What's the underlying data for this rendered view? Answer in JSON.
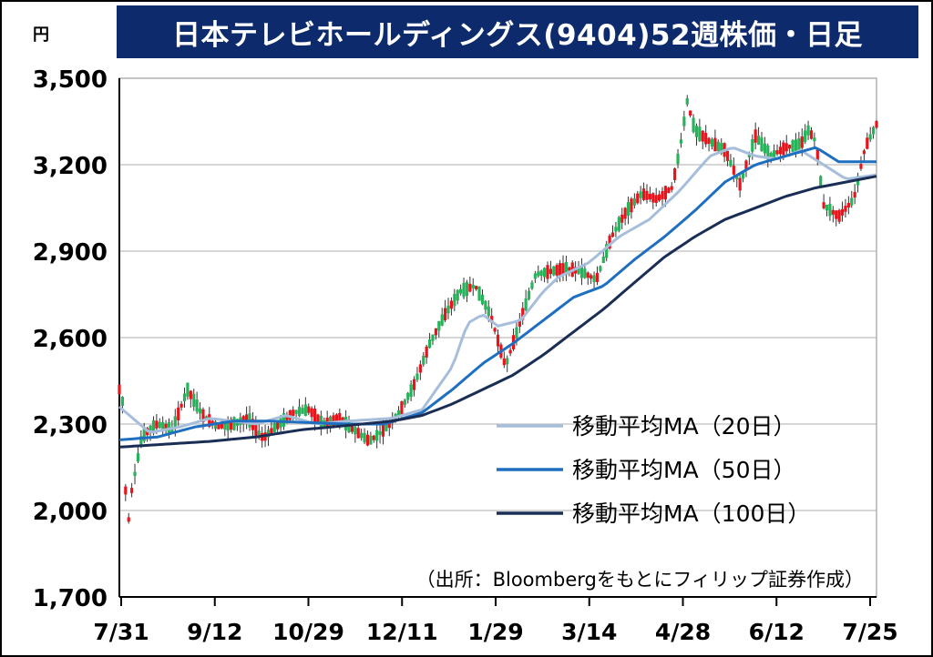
{
  "chart_data": {
    "type": "candlestick",
    "title": "日本テレビホールディングス(9404)52週株価・日足",
    "unit_label": "円",
    "source_note": "（出所：Bloombergをもとにフィリップ証券作成）",
    "y_ticks": [
      "3,500",
      "3,200",
      "2,900",
      "2,600",
      "2,300",
      "2,000",
      "1,700"
    ],
    "y_tick_values": [
      3500,
      3200,
      2900,
      2600,
      2300,
      2000,
      1700
    ],
    "x_ticks": [
      "7/31",
      "9/12",
      "10/29",
      "12/11",
      "1/29",
      "3/14",
      "4/28",
      "6/12",
      "7/25"
    ],
    "ylim": [
      1700,
      3500
    ],
    "grid": true,
    "legend_placement": "center-right",
    "colors": {
      "up": "#e8141c",
      "down": "#27b35a",
      "ma20": "#a6bedc",
      "ma50": "#1f6fc0",
      "ma100": "#1a2e55",
      "grid": "#c8c8c8",
      "title_bg": "#0d2a6c"
    },
    "series": [
      {
        "name": "移動平均MA（20日）",
        "anchors": [
          [
            0,
            2360
          ],
          [
            0.04,
            2270
          ],
          [
            0.08,
            2290
          ],
          [
            0.12,
            2320
          ],
          [
            0.18,
            2300
          ],
          [
            0.22,
            2330
          ],
          [
            0.26,
            2300
          ],
          [
            0.3,
            2310
          ],
          [
            0.36,
            2320
          ],
          [
            0.4,
            2350
          ],
          [
            0.44,
            2500
          ],
          [
            0.46,
            2650
          ],
          [
            0.48,
            2680
          ],
          [
            0.5,
            2640
          ],
          [
            0.53,
            2660
          ],
          [
            0.56,
            2760
          ],
          [
            0.58,
            2810
          ],
          [
            0.62,
            2860
          ],
          [
            0.66,
            2950
          ],
          [
            0.7,
            3010
          ],
          [
            0.74,
            3110
          ],
          [
            0.78,
            3230
          ],
          [
            0.81,
            3260
          ],
          [
            0.84,
            3230
          ],
          [
            0.87,
            3220
          ],
          [
            0.9,
            3250
          ],
          [
            0.93,
            3200
          ],
          [
            0.96,
            3150
          ],
          [
            1.0,
            3165
          ]
        ]
      },
      {
        "name": "移動平均MA（50日）",
        "anchors": [
          [
            0,
            2245
          ],
          [
            0.05,
            2255
          ],
          [
            0.1,
            2290
          ],
          [
            0.15,
            2310
          ],
          [
            0.2,
            2310
          ],
          [
            0.25,
            2305
          ],
          [
            0.3,
            2300
          ],
          [
            0.35,
            2300
          ],
          [
            0.4,
            2340
          ],
          [
            0.44,
            2420
          ],
          [
            0.48,
            2510
          ],
          [
            0.52,
            2580
          ],
          [
            0.56,
            2660
          ],
          [
            0.6,
            2740
          ],
          [
            0.64,
            2780
          ],
          [
            0.68,
            2870
          ],
          [
            0.72,
            2950
          ],
          [
            0.76,
            3040
          ],
          [
            0.8,
            3140
          ],
          [
            0.84,
            3200
          ],
          [
            0.88,
            3230
          ],
          [
            0.92,
            3260
          ],
          [
            0.95,
            3210
          ],
          [
            1.0,
            3210
          ]
        ]
      },
      {
        "name": "移動平均MA（100日）",
        "anchors": [
          [
            0,
            2220
          ],
          [
            0.06,
            2230
          ],
          [
            0.12,
            2240
          ],
          [
            0.18,
            2255
          ],
          [
            0.24,
            2280
          ],
          [
            0.3,
            2295
          ],
          [
            0.36,
            2310
          ],
          [
            0.4,
            2330
          ],
          [
            0.44,
            2370
          ],
          [
            0.48,
            2420
          ],
          [
            0.52,
            2470
          ],
          [
            0.56,
            2540
          ],
          [
            0.6,
            2620
          ],
          [
            0.64,
            2700
          ],
          [
            0.68,
            2790
          ],
          [
            0.72,
            2880
          ],
          [
            0.76,
            2950
          ],
          [
            0.8,
            3010
          ],
          [
            0.84,
            3050
          ],
          [
            0.88,
            3090
          ],
          [
            0.92,
            3120
          ],
          [
            0.96,
            3140
          ],
          [
            1.0,
            3160
          ]
        ]
      }
    ],
    "candle_path": [
      [
        0,
        2420
      ],
      [
        0.005,
        2370
      ],
      [
        0.01,
        1900
      ],
      [
        0.015,
        2050
      ],
      [
        0.03,
        2260
      ],
      [
        0.05,
        2300
      ],
      [
        0.07,
        2280
      ],
      [
        0.09,
        2420
      ],
      [
        0.11,
        2330
      ],
      [
        0.13,
        2290
      ],
      [
        0.15,
        2300
      ],
      [
        0.17,
        2320
      ],
      [
        0.19,
        2250
      ],
      [
        0.21,
        2300
      ],
      [
        0.23,
        2340
      ],
      [
        0.25,
        2350
      ],
      [
        0.27,
        2300
      ],
      [
        0.29,
        2320
      ],
      [
        0.31,
        2280
      ],
      [
        0.33,
        2240
      ],
      [
        0.35,
        2280
      ],
      [
        0.37,
        2340
      ],
      [
        0.39,
        2440
      ],
      [
        0.41,
        2580
      ],
      [
        0.43,
        2680
      ],
      [
        0.45,
        2760
      ],
      [
        0.47,
        2780
      ],
      [
        0.49,
        2680
      ],
      [
        0.51,
        2500
      ],
      [
        0.53,
        2660
      ],
      [
        0.55,
        2820
      ],
      [
        0.57,
        2830
      ],
      [
        0.59,
        2840
      ],
      [
        0.61,
        2830
      ],
      [
        0.63,
        2800
      ],
      [
        0.65,
        2950
      ],
      [
        0.67,
        3040
      ],
      [
        0.69,
        3100
      ],
      [
        0.71,
        3080
      ],
      [
        0.73,
        3120
      ],
      [
        0.74,
        3250
      ],
      [
        0.75,
        3420
      ],
      [
        0.76,
        3320
      ],
      [
        0.78,
        3280
      ],
      [
        0.8,
        3250
      ],
      [
        0.82,
        3130
      ],
      [
        0.84,
        3300
      ],
      [
        0.86,
        3230
      ],
      [
        0.88,
        3260
      ],
      [
        0.9,
        3270
      ],
      [
        0.91,
        3320
      ],
      [
        0.92,
        3280
      ],
      [
        0.93,
        3060
      ],
      [
        0.95,
        3020
      ],
      [
        0.97,
        3080
      ],
      [
        0.985,
        3260
      ],
      [
        1.0,
        3340
      ]
    ]
  }
}
